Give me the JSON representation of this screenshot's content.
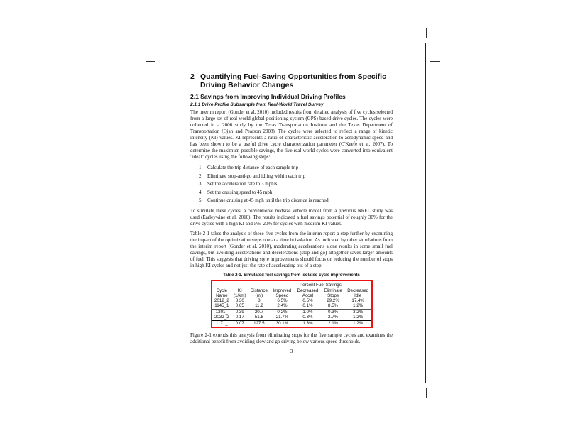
{
  "heading": {
    "number": "2",
    "title": "Quantifying Fuel-Saving Opportunities from Specific Driving Behavior Changes"
  },
  "section": "2.1    Savings from Improving Individual Driving Profiles",
  "subsection": "2.1.1    Drive Profile Subsample from Real-World Travel Survey",
  "para1": "The interim report (Gonder et al. 2010) included results from detailed analysis of five cycles selected from a large set of real-world global positioning system (GPS)-based drive cycles. The cycles were collected in a 2006 study by the Texas Transportation Institute and the Texas Department of Transportation (Ojah and Pearson 2008). The cycles were selected to reflect a range of kinetic intensity (KI) values. KI represents a ratio of characteristic acceleration to aerodynamic speed and has been shown to be a useful drive cycle characterization parameter (O'Keefe et al. 2007). To determine the maximum possible savings, the five real-world cycles were converted into equivalent \"ideal\" cycles using the following steps:",
  "steps": [
    {
      "num": "1.",
      "text": "Calculate the trip distance of each sample trip"
    },
    {
      "num": "2.",
      "text": "Eliminate stop-and-go and idling within each trip"
    },
    {
      "num": "3.",
      "text": "Set the acceleration rate to 3 mph/s"
    },
    {
      "num": "4.",
      "text": "Set the cruising speed to 45 mph"
    },
    {
      "num": "5.",
      "text": "Continue cruising at 45 mph until the trip distance is reached"
    }
  ],
  "para2": "To simulate these cycles, a conventional midsize vehicle model from a previous NREL study was used (Earleywine et al. 2010). The results indicated a fuel savings potential of roughly 30% for the drive cycles with a high KI and 5%–20% for cycles with medium KI values.",
  "para3": "Table 2-1 takes the analysis of these five cycles from the interim report a step further by examining the impact of the optimization steps one at a time in isolation. As indicated by other simulations from the interim report (Gonder et al. 2010), moderating accelerations alone results in some small fuel savings, but avoiding accelerations and decelerations (stop-and-go) altogether saves larger amounts of fuel. This suggests that driving style improvements should focus on reducing the number of stops in high KI cycles and not just the rate of accelerating out of a stop.",
  "table": {
    "caption": "Table 2-1. Simulated fuel savings from isolated cycle improvements",
    "headers": {
      "cycle": "Cycle Name",
      "ki": "KI (1/km)",
      "distance": "Distance (mi)",
      "group": "Percent Fuel Savings",
      "c1": "Improved Speed",
      "c2": "Decreased Accel",
      "c3": "Eliminate Stops",
      "c4": "Decreased Idle"
    },
    "rows": [
      [
        "2012_2",
        "8.30",
        "8",
        "6.5%",
        "0.5%",
        "29.2%",
        "17.4%"
      ],
      [
        "1145_1",
        "0.65",
        "11.2",
        "2.4%",
        "0.1%",
        "8.5%",
        "1.2%"
      ],
      [
        "1201_",
        "0.39",
        "20.7",
        "0.2%",
        "1.0%",
        "0.3%",
        "3.2%"
      ],
      [
        "2032_2",
        "0.17",
        "51.8",
        "21.7%",
        "0.3%",
        "2.7%",
        "1.2%"
      ],
      [
        "1171_",
        "0.07",
        "127.5",
        "30.1%",
        "1.3%",
        "2.1%",
        "1.2%"
      ]
    ]
  },
  "para4": "Figure 2-1 extends this analysis from eliminating stops for the five sample cycles and examines the additional benefit from avoiding slow and go driving below various speed thresholds.",
  "page_number": "3",
  "colors": {
    "highlight": "#e11111"
  }
}
